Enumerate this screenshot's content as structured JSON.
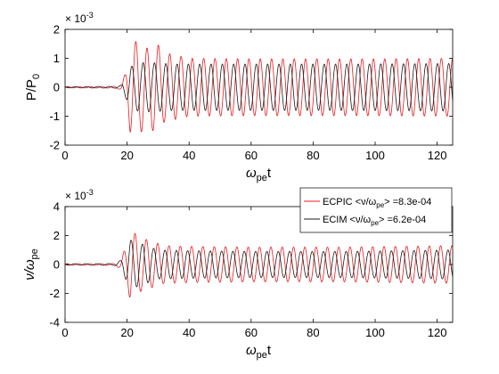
{
  "chart_data": [
    {
      "type": "line",
      "xlabel_base": "ω",
      "xlabel_sub": "pe",
      "xlabel_tail": "t",
      "ylabel_base": "P/P",
      "ylabel_sub": "0",
      "exponent_base": "× 10",
      "exponent_power": "-3",
      "xlim": [
        0,
        125
      ],
      "ylim": [
        -2,
        2
      ],
      "xticks": [
        0,
        20,
        40,
        60,
        80,
        100,
        120
      ],
      "xtick_labels": [
        "0",
        "20",
        "40",
        "60",
        "80",
        "100",
        "120"
      ],
      "yticks": [
        -2,
        -1,
        0,
        1,
        2
      ],
      "ytick_labels": [
        "-2",
        "-1",
        "0",
        "1",
        "2"
      ],
      "grid": false,
      "series": [
        {
          "color": "#e8191c",
          "envelope": [
            [
              0,
              0.02
            ],
            [
              16,
              0.03
            ],
            [
              18,
              0.08
            ],
            [
              19.5,
              0.5
            ],
            [
              21,
              1.55
            ],
            [
              24,
              1.6
            ],
            [
              27,
              1.3
            ],
            [
              29,
              1.6
            ],
            [
              32,
              1.2
            ],
            [
              40,
              1.0
            ],
            [
              60,
              0.98
            ],
            [
              80,
              0.98
            ],
            [
              100,
              0.98
            ],
            [
              125,
              1.0
            ]
          ],
          "period": 3.65,
          "phase": 0.0
        },
        {
          "color": "#1a1a1a",
          "envelope": [
            [
              0,
              0.02
            ],
            [
              16,
              0.03
            ],
            [
              18,
              0.06
            ],
            [
              19.5,
              0.35
            ],
            [
              21,
              0.7
            ],
            [
              24,
              0.85
            ],
            [
              28,
              0.85
            ],
            [
              35,
              0.8
            ],
            [
              60,
              0.8
            ],
            [
              90,
              0.8
            ],
            [
              125,
              0.82
            ]
          ],
          "period": 3.65,
          "phase": 2.2
        }
      ]
    },
    {
      "type": "line",
      "xlabel_base": "ω",
      "xlabel_sub": "pe",
      "xlabel_tail": "t",
      "ylabel_base": "ν/ω",
      "ylabel_sub": "pe",
      "exponent_base": "× 10",
      "exponent_power": "-3",
      "xlim": [
        0,
        125
      ],
      "ylim": [
        -4,
        4
      ],
      "xticks": [
        0,
        20,
        40,
        60,
        80,
        100,
        120
      ],
      "xtick_labels": [
        "0",
        "20",
        "40",
        "60",
        "80",
        "100",
        "120"
      ],
      "yticks": [
        -4,
        -2,
        0,
        2,
        4
      ],
      "ytick_labels": [
        "-4",
        "-2",
        "0",
        "2",
        "4"
      ],
      "grid": false,
      "legend_position": "top-right",
      "series": [
        {
          "name_prefix": "ECPIC <ν/ω",
          "name_sub": "pe",
          "name_suffix": "> =8.3e-04",
          "color": "#e8191c",
          "envelope": [
            [
              0,
              0.05
            ],
            [
              16,
              0.06
            ],
            [
              18,
              0.3
            ],
            [
              19.5,
              1.2
            ],
            [
              21,
              2.4
            ],
            [
              24,
              1.9
            ],
            [
              28,
              1.6
            ],
            [
              32,
              1.3
            ],
            [
              40,
              1.25
            ],
            [
              60,
              1.2
            ],
            [
              90,
              1.2
            ],
            [
              125,
              1.3
            ]
          ],
          "period": 3.65,
          "phase": 0.4
        },
        {
          "name_prefix": "ECIM <ν/ω",
          "name_sub": "pe",
          "name_suffix": "> =6.2e-04",
          "color": "#1a1a1a",
          "envelope": [
            [
              0,
              0.05
            ],
            [
              16,
              0.06
            ],
            [
              18,
              0.3
            ],
            [
              19.5,
              1.0
            ],
            [
              21,
              1.7
            ],
            [
              25,
              1.4
            ],
            [
              30,
              1.0
            ],
            [
              40,
              0.95
            ],
            [
              60,
              0.9
            ],
            [
              90,
              0.9
            ],
            [
              125,
              1.0
            ]
          ],
          "period": 3.65,
          "phase": 2.6
        }
      ]
    }
  ]
}
